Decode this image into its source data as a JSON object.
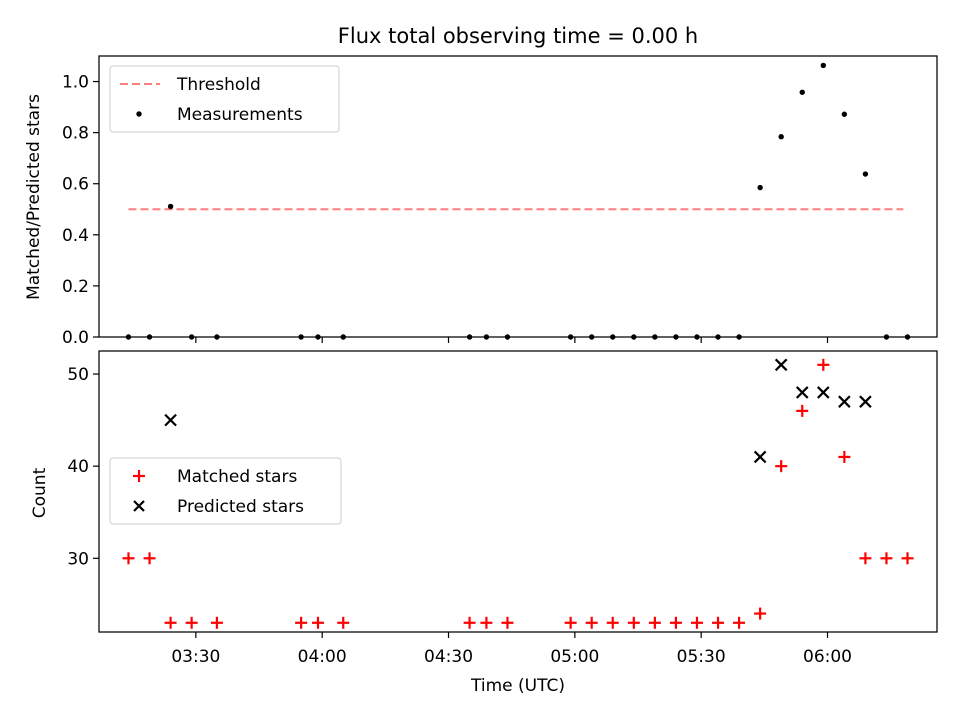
{
  "chart_data": [
    {
      "type": "scatter",
      "title": "Flux total observing time = 0.00 h",
      "ylabel": "Matched/Predicted stars",
      "xlabel": "",
      "ylim": [
        0,
        1.1
      ],
      "yticks": [
        0.0,
        0.2,
        0.4,
        0.6,
        0.8,
        1.0
      ],
      "ytick_labels": [
        "0.0",
        "0.2",
        "0.4",
        "0.6",
        "0.8",
        "1.0"
      ],
      "legend_position": "top-left",
      "threshold": {
        "name": "Threshold",
        "value": 0.5,
        "x_start": "03:14",
        "x_end": "06:18",
        "color": "#ff7f7f",
        "style": "dashed"
      },
      "series": [
        {
          "name": "Measurements",
          "color": "#000000",
          "marker": "dot",
          "x": [
            "03:14",
            "03:19",
            "03:24",
            "03:29",
            "03:35",
            "03:55",
            "03:59",
            "04:05",
            "04:35",
            "04:39",
            "04:44",
            "04:59",
            "05:04",
            "05:09",
            "05:14",
            "05:19",
            "05:24",
            "05:29",
            "05:34",
            "05:39",
            "05:44",
            "05:49",
            "05:54",
            "05:59",
            "06:04",
            "06:09",
            "06:14",
            "06:19"
          ],
          "y": [
            0,
            0,
            0.511,
            0,
            0,
            0,
            0,
            0,
            0,
            0,
            0,
            0,
            0,
            0,
            0,
            0,
            0,
            0,
            0,
            0,
            0.585,
            0.784,
            0.958,
            1.063,
            0.872,
            0.638,
            0,
            0
          ]
        }
      ]
    },
    {
      "type": "scatter",
      "xlabel": "Time (UTC)",
      "ylabel": "Count",
      "xlim": [
        "03:07",
        "06:26"
      ],
      "ylim": [
        22,
        52.5
      ],
      "yticks": [
        30,
        40,
        50
      ],
      "ytick_labels": [
        "30",
        "40",
        "50"
      ],
      "xticks": [
        "03:30",
        "04:00",
        "04:30",
        "05:00",
        "05:30",
        "06:00"
      ],
      "legend_position": "center-left",
      "series": [
        {
          "name": "Matched stars",
          "color": "#ff0000",
          "marker": "plus",
          "x": [
            "03:14",
            "03:19",
            "03:24",
            "03:29",
            "03:35",
            "03:55",
            "03:59",
            "04:05",
            "04:35",
            "04:39",
            "04:44",
            "04:59",
            "05:04",
            "05:09",
            "05:14",
            "05:19",
            "05:24",
            "05:29",
            "05:34",
            "05:39",
            "05:44",
            "05:49",
            "05:54",
            "05:59",
            "06:04",
            "06:09",
            "06:14",
            "06:19"
          ],
          "y": [
            30,
            30,
            23,
            23,
            23,
            23,
            23,
            23,
            23,
            23,
            23,
            23,
            23,
            23,
            23,
            23,
            23,
            23,
            23,
            23,
            24,
            40,
            46,
            51,
            41,
            30,
            30,
            30
          ]
        },
        {
          "name": "Predicted stars",
          "color": "#000000",
          "marker": "x",
          "x": [
            "03:24",
            "05:44",
            "05:49",
            "05:54",
            "05:59",
            "06:04",
            "06:09"
          ],
          "y": [
            45,
            41,
            51,
            48,
            48,
            47,
            47
          ]
        }
      ]
    }
  ]
}
